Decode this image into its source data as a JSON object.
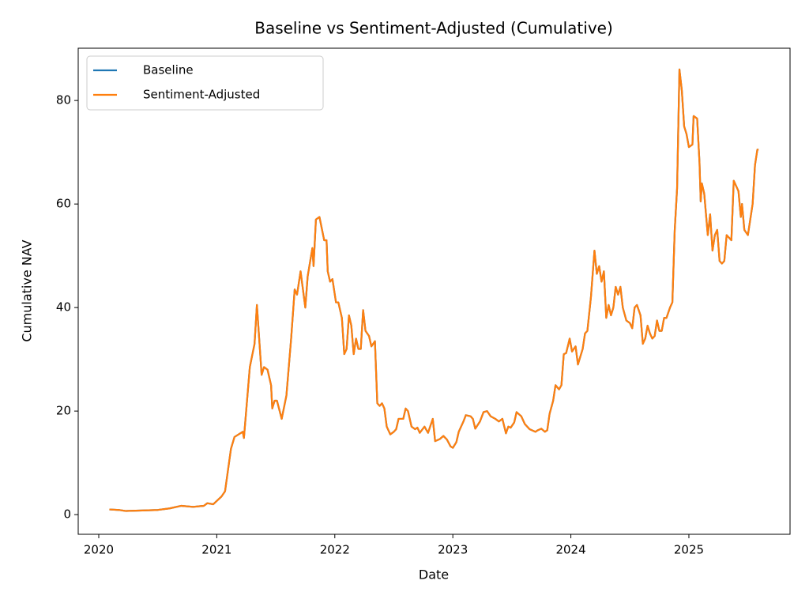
{
  "chart_data": {
    "type": "line",
    "title": "Baseline vs Sentiment-Adjusted (Cumulative)",
    "x_label": "Date",
    "y_label": "Cumulative NAV",
    "x": [
      2020.09,
      2020.17,
      2020.23,
      2020.37,
      2020.5,
      2020.6,
      2020.7,
      2020.8,
      2020.89,
      2020.92,
      2020.97,
      2021.04,
      2021.07,
      2021.12,
      2021.15,
      2021.22,
      2021.23,
      2021.28,
      2021.32,
      2021.34,
      2021.38,
      2021.4,
      2021.43,
      2021.46,
      2021.47,
      2021.49,
      2021.51,
      2021.55,
      2021.59,
      2021.63,
      2021.66,
      2021.68,
      2021.71,
      2021.75,
      2021.77,
      2021.81,
      2021.82,
      2021.84,
      2021.87,
      2021.91,
      2021.93,
      2021.94,
      2021.96,
      2021.98,
      2022.01,
      2022.03,
      2022.06,
      2022.08,
      2022.1,
      2022.12,
      2022.14,
      2022.16,
      2022.18,
      2022.2,
      2022.22,
      2022.24,
      2022.26,
      2022.29,
      2022.31,
      2022.34,
      2022.36,
      2022.38,
      2022.4,
      2022.42,
      2022.44,
      2022.47,
      2022.5,
      2022.52,
      2022.54,
      2022.58,
      2022.6,
      2022.62,
      2022.65,
      2022.68,
      2022.7,
      2022.72,
      2022.76,
      2022.79,
      2022.83,
      2022.85,
      2022.89,
      2022.92,
      2022.95,
      2022.98,
      2023.0,
      2023.03,
      2023.05,
      2023.09,
      2023.11,
      2023.15,
      2023.17,
      2023.19,
      2023.23,
      2023.26,
      2023.29,
      2023.32,
      2023.36,
      2023.39,
      2023.42,
      2023.45,
      2023.47,
      2023.49,
      2023.52,
      2023.54,
      2023.58,
      2023.61,
      2023.65,
      2023.7,
      2023.72,
      2023.75,
      2023.78,
      2023.8,
      2023.82,
      2023.85,
      2023.87,
      2023.9,
      2023.92,
      2023.94,
      2023.96,
      2023.99,
      2024.01,
      2024.04,
      2024.06,
      2024.08,
      2024.1,
      2024.12,
      2024.14,
      2024.17,
      2024.2,
      2024.22,
      2024.24,
      2024.26,
      2024.28,
      2024.3,
      2024.32,
      2024.34,
      2024.36,
      2024.38,
      2024.4,
      2024.42,
      2024.44,
      2024.47,
      2024.5,
      2024.52,
      2024.54,
      2024.56,
      2024.59,
      2024.61,
      2024.63,
      2024.65,
      2024.67,
      2024.69,
      2024.71,
      2024.73,
      2024.75,
      2024.77,
      2024.79,
      2024.81,
      2024.84,
      2024.86,
      2024.88,
      2024.9,
      2024.92,
      2024.94,
      2024.96,
      2024.98,
      2025.0,
      2025.03,
      2025.04,
      2025.07,
      2025.09,
      2025.1,
      2025.11,
      2025.13,
      2025.16,
      2025.18,
      2025.2,
      2025.22,
      2025.24,
      2025.26,
      2025.28,
      2025.3,
      2025.32,
      2025.34,
      2025.36,
      2025.38,
      2025.4,
      2025.42,
      2025.44,
      2025.45,
      2025.47,
      2025.5,
      2025.52,
      2025.54,
      2025.56,
      2025.58,
      2025.59
    ],
    "series": [
      {
        "name": "Baseline",
        "color": "#1f77b4",
        "values": [
          1.0,
          0.9,
          0.7,
          0.8,
          0.9,
          1.2,
          1.7,
          1.5,
          1.7,
          2.2,
          2.0,
          3.5,
          4.5,
          12.7,
          15,
          16,
          14.8,
          28.5,
          33,
          40.5,
          27,
          28.5,
          28,
          25,
          20.5,
          22,
          22,
          18.5,
          23,
          34,
          43.5,
          42.5,
          47,
          40,
          46,
          51.5,
          48,
          57,
          57.5,
          53,
          53,
          47,
          45,
          45.5,
          41,
          41,
          38,
          31,
          32,
          38.5,
          36.5,
          31,
          34,
          32,
          32,
          39.5,
          35.5,
          34.5,
          32.5,
          33.5,
          21.5,
          21,
          21.5,
          20.5,
          17,
          15.5,
          16,
          16.5,
          18.5,
          18.5,
          20.5,
          20,
          17,
          16.5,
          16.8,
          15.8,
          17,
          15.8,
          18.5,
          14.2,
          14.6,
          15.2,
          14.5,
          13.2,
          12.9,
          14,
          16,
          18,
          19.2,
          19,
          18.5,
          16.6,
          18,
          19.8,
          20,
          19,
          18.5,
          18,
          18.5,
          15.7,
          17,
          16.8,
          17.8,
          19.8,
          19,
          17.5,
          16.5,
          16,
          16.3,
          16.6,
          16,
          16.3,
          19.5,
          22,
          25,
          24.2,
          25,
          31,
          31.2,
          34,
          31.5,
          32.5,
          29,
          30.5,
          32,
          35,
          35.5,
          42,
          51,
          46.5,
          48,
          45,
          47,
          38,
          40.5,
          38.5,
          40,
          44,
          42.5,
          44,
          40,
          37.5,
          37,
          36,
          40,
          40.5,
          38.5,
          33,
          34,
          36.5,
          35,
          34,
          34.5,
          37.5,
          35.5,
          35.5,
          38,
          38,
          40,
          41,
          55,
          63,
          86,
          82,
          75,
          73.5,
          71,
          71.5,
          77,
          76.5,
          68,
          60.5,
          64,
          62,
          54,
          58,
          51,
          54,
          55,
          49,
          48.5,
          49,
          54,
          53.5,
          53,
          64.5,
          63.5,
          62.5,
          57.5,
          60,
          55,
          54,
          57,
          60,
          67.5,
          70.5,
          70.5
        ]
      },
      {
        "name": "Sentiment-Adjusted",
        "color": "#ff7f0e",
        "values": [
          1.0,
          0.9,
          0.7,
          0.8,
          0.9,
          1.2,
          1.7,
          1.5,
          1.7,
          2.2,
          2.0,
          3.5,
          4.5,
          12.7,
          15,
          16,
          14.8,
          28.5,
          33,
          40.5,
          27,
          28.5,
          28,
          25,
          20.5,
          22,
          22,
          18.5,
          23,
          34,
          43.5,
          42.5,
          47,
          40,
          46,
          51.5,
          48,
          57,
          57.5,
          53,
          53,
          47,
          45,
          45.5,
          41,
          41,
          38,
          31,
          32,
          38.5,
          36.5,
          31,
          34,
          32,
          32,
          39.5,
          35.5,
          34.5,
          32.5,
          33.5,
          21.5,
          21,
          21.5,
          20.5,
          17,
          15.5,
          16,
          16.5,
          18.5,
          18.5,
          20.5,
          20,
          17,
          16.5,
          16.8,
          15.8,
          17,
          15.8,
          18.5,
          14.2,
          14.6,
          15.2,
          14.5,
          13.2,
          12.9,
          14,
          16,
          18,
          19.2,
          19,
          18.5,
          16.6,
          18,
          19.8,
          20,
          19,
          18.5,
          18,
          18.5,
          15.7,
          17,
          16.8,
          17.8,
          19.8,
          19,
          17.5,
          16.5,
          16,
          16.3,
          16.6,
          16,
          16.3,
          19.5,
          22,
          25,
          24.2,
          25,
          31,
          31.2,
          34,
          31.5,
          32.5,
          29,
          30.5,
          32,
          35,
          35.5,
          42,
          51,
          46.5,
          48,
          45,
          47,
          38,
          40.5,
          38.5,
          40,
          44,
          42.5,
          44,
          40,
          37.5,
          37,
          36,
          40,
          40.5,
          38.5,
          33,
          34,
          36.5,
          35,
          34,
          34.5,
          37.5,
          35.5,
          35.5,
          38,
          38,
          40,
          41,
          55,
          63,
          86,
          82,
          75,
          73.5,
          71,
          71.5,
          77,
          76.5,
          68,
          60.5,
          64,
          62,
          54,
          58,
          51,
          54,
          55,
          49,
          48.5,
          49,
          54,
          53.5,
          53,
          64.5,
          63.5,
          62.5,
          57.5,
          60,
          55,
          54,
          57,
          60,
          67.5,
          70.5,
          70.5
        ]
      }
    ],
    "xlim": [
      2019.826,
      2025.857
    ],
    "xticks": [
      2020,
      2021,
      2022,
      2023,
      2024,
      2025
    ],
    "ylim": [
      -3.8,
      90.1
    ],
    "yticks": [
      0,
      20,
      40,
      60,
      80
    ],
    "grid": false,
    "legend": "upper left"
  }
}
